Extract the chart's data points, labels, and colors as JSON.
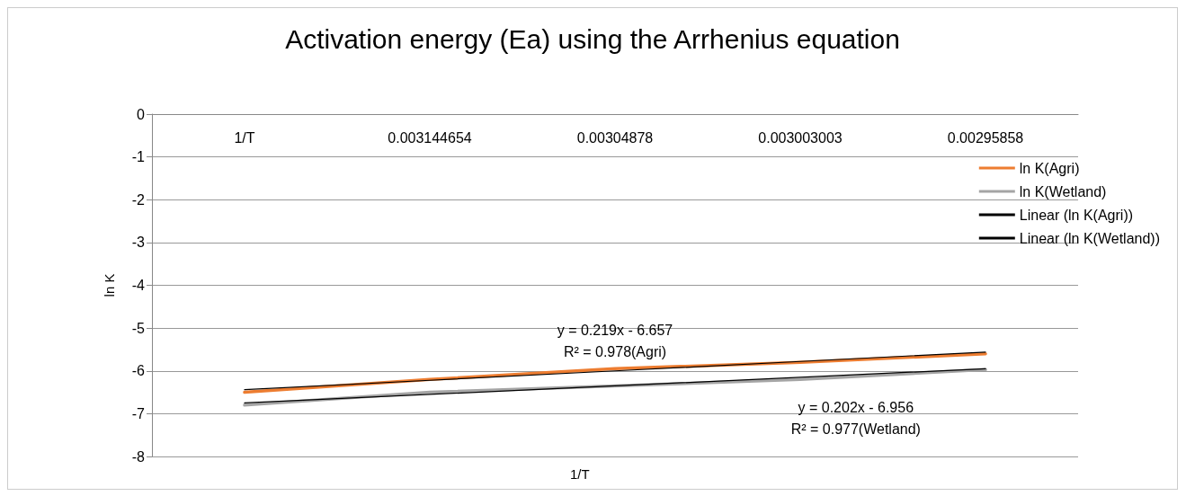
{
  "chart_data": {
    "type": "line",
    "title": "Activation energy (Ea) using the Arrhenius equation",
    "xlabel": "1/T",
    "ylabel": "ln K",
    "categories": [
      "1/T",
      "0.003144654",
      "0.00304878",
      "0.003003003",
      "0.00295858"
    ],
    "series": [
      {
        "name": "ln K(Agri)",
        "color": "#ed7d31",
        "values": [
          -6.5,
          -6.2,
          -5.95,
          -5.8,
          -5.6
        ]
      },
      {
        "name": "ln K(Wetland)",
        "color": "#a5a5a5",
        "values": [
          -6.8,
          -6.5,
          -6.35,
          -6.2,
          -5.97
        ]
      },
      {
        "name": "Linear (ln K(Agri))",
        "type": "line",
        "color": "#000000",
        "values": [
          -6.44,
          -6.22,
          -6.0,
          -5.78,
          -5.56
        ]
      },
      {
        "name": "Linear (ln K(Wetland))",
        "type": "line",
        "color": "#000000",
        "values": [
          -6.75,
          -6.55,
          -6.35,
          -6.15,
          -5.95
        ]
      }
    ],
    "annotations": [
      "y = 0.219x - 6.657\nR² = 0.978(Agri)",
      "y = 0.202x - 6.956\nR² = 0.977(Wetland)"
    ],
    "ylim": [
      -8,
      0
    ],
    "yticks": [
      -8,
      -7,
      -6,
      -5,
      -4,
      -3,
      -2,
      -1,
      0
    ],
    "grid": "y",
    "legend": "right",
    "marker": "none",
    "line_style": "solid"
  }
}
